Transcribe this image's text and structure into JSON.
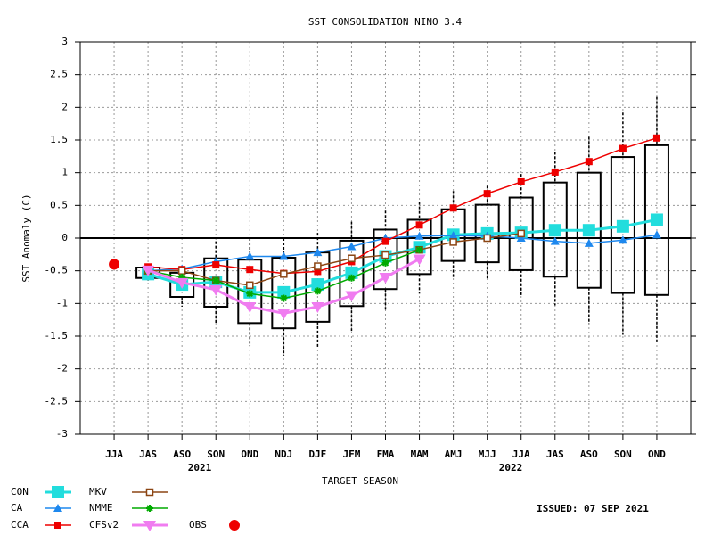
{
  "chart_data": {
    "type": "line",
    "title": "SST CONSOLIDATION NINO 3.4",
    "xlabel": "TARGET SEASON",
    "ylabel": "SST Anomaly (C)",
    "year_labels": [
      "2021",
      "2022"
    ],
    "issued": "ISSUED: 07 SEP 2021",
    "categories": [
      "JJA",
      "JAS",
      "ASO",
      "SON",
      "OND",
      "NDJ",
      "DJF",
      "JFM",
      "FMA",
      "MAM",
      "AMJ",
      "MJJ",
      "JJA",
      "JAS",
      "ASO",
      "SON",
      "OND"
    ],
    "ylim": [
      -3,
      3
    ],
    "yticks": [
      -3,
      -2.5,
      -2,
      -1.5,
      -1,
      -0.5,
      0,
      0.5,
      1,
      1.5,
      2,
      2.5,
      3
    ],
    "grid": true,
    "boxes": {
      "box_top": [
        null,
        -0.45,
        -0.53,
        -0.31,
        -0.33,
        -0.3,
        -0.22,
        -0.04,
        0.13,
        0.28,
        0.44,
        0.51,
        0.62,
        0.85,
        1.0,
        1.24,
        1.42
      ],
      "box_bottom": [
        null,
        -0.61,
        -0.9,
        -1.05,
        -1.3,
        -1.38,
        -1.28,
        -1.04,
        -0.78,
        -0.55,
        -0.35,
        -0.37,
        -0.49,
        -0.59,
        -0.76,
        -0.84,
        -0.87
      ],
      "whisker_top": [
        null,
        -0.45,
        -0.45,
        -0.05,
        0.0,
        0.0,
        0.08,
        0.25,
        0.42,
        0.55,
        0.72,
        0.8,
        0.98,
        1.32,
        1.55,
        1.92,
        2.16
      ],
      "whisker_bottom": [
        null,
        -0.65,
        -1.05,
        -1.33,
        -1.65,
        -1.8,
        -1.68,
        -1.42,
        -1.1,
        -0.85,
        -0.6,
        -0.62,
        -0.88,
        -1.03,
        -1.31,
        -1.48,
        -1.58
      ]
    },
    "series": [
      {
        "name": "CON",
        "color": "#22dddd",
        "marker": "square",
        "width": 3,
        "values": [
          null,
          -0.55,
          -0.71,
          -0.67,
          -0.83,
          -0.83,
          -0.71,
          -0.53,
          -0.28,
          -0.14,
          0.05,
          0.07,
          0.08,
          0.12,
          0.12,
          0.18,
          0.28
        ]
      },
      {
        "name": "CA",
        "color": "#1e88ee",
        "marker": "triangle",
        "width": 1.5,
        "values": [
          null,
          -0.5,
          -0.47,
          -0.36,
          -0.28,
          -0.28,
          -0.22,
          -0.13,
          0.0,
          0.03,
          0.04,
          0.03,
          0.0,
          -0.05,
          -0.08,
          -0.03,
          0.05
        ]
      },
      {
        "name": "CCA",
        "color": "#ee0000",
        "marker": "smallsquare",
        "width": 1.5,
        "values": [
          null,
          -0.44,
          -0.48,
          -0.41,
          -0.48,
          -0.54,
          -0.51,
          -0.36,
          -0.05,
          0.2,
          0.46,
          0.68,
          0.86,
          1.01,
          1.17,
          1.37,
          1.53
        ]
      },
      {
        "name": "MKV",
        "color": "#8b4513",
        "marker": "opensquare",
        "width": 1.5,
        "values": [
          null,
          -0.5,
          -0.5,
          -0.65,
          -0.72,
          -0.55,
          -0.43,
          -0.31,
          -0.26,
          -0.18,
          -0.06,
          0.0,
          0.07,
          null,
          null,
          null,
          null
        ]
      },
      {
        "name": "NMME",
        "color": "#00aa00",
        "marker": "star",
        "width": 1.5,
        "values": [
          null,
          -0.5,
          -0.6,
          -0.65,
          -0.85,
          -0.92,
          -0.81,
          -0.61,
          -0.38,
          -0.18,
          null,
          null,
          null,
          null,
          null,
          null,
          null
        ]
      },
      {
        "name": "CFSv2",
        "color": "#f07cf0",
        "marker": "downtriangle",
        "width": 3,
        "values": [
          null,
          -0.49,
          -0.68,
          -0.79,
          -1.05,
          -1.15,
          -1.05,
          -0.88,
          -0.6,
          -0.32,
          null,
          null,
          null,
          null,
          null,
          null,
          null
        ]
      },
      {
        "name": "OBS",
        "color": "#ee0000",
        "marker": "circle",
        "width": 0,
        "values": [
          -0.4,
          null,
          null,
          null,
          null,
          null,
          null,
          null,
          null,
          null,
          null,
          null,
          null,
          null,
          null,
          null,
          null
        ]
      }
    ]
  }
}
